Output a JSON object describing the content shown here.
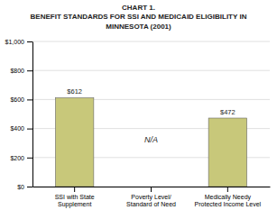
{
  "chart_data": {
    "type": "bar",
    "title": "CHART 1.\nBENEFIT STANDARDS FOR SSI AND MEDICAID ELIGIBILITY IN\nMINNESOTA (2001)",
    "categories": [
      "SSI with State\nSupplement",
      "Poverty Level/\nStandard of Need",
      "Medically Needy\nProtected Income Level"
    ],
    "values": [
      612,
      null,
      472
    ],
    "value_labels": [
      "$612",
      "N/A",
      "$472"
    ],
    "data_labels": true,
    "color": "#c8c87a",
    "ylim": [
      0,
      1000
    ],
    "yticks": [
      {
        "value": 0,
        "label": "$0"
      },
      {
        "value": 200,
        "label": "$200"
      },
      {
        "value": 400,
        "label": "$400"
      },
      {
        "value": 600,
        "label": "$600"
      },
      {
        "value": 800,
        "label": "$800"
      },
      {
        "value": 1000,
        "label": "$1,000"
      }
    ],
    "grid": true
  }
}
